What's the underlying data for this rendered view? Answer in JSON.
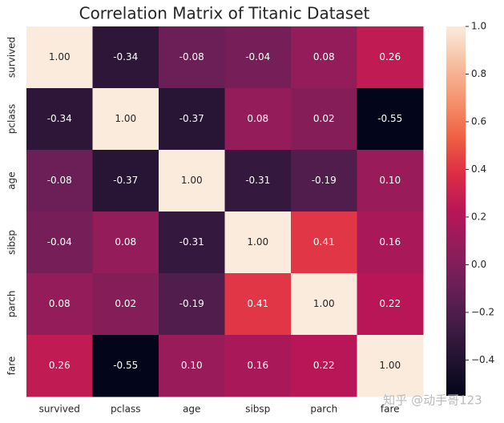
{
  "chart_data": {
    "type": "heatmap",
    "title": "Correlation Matrix of Titanic Dataset",
    "categories": [
      "survived",
      "pclass",
      "age",
      "sibsp",
      "parch",
      "fare"
    ],
    "values": [
      [
        1.0,
        -0.34,
        -0.08,
        -0.04,
        0.08,
        0.26
      ],
      [
        -0.34,
        1.0,
        -0.37,
        0.08,
        0.02,
        -0.55
      ],
      [
        -0.08,
        -0.37,
        1.0,
        -0.31,
        -0.19,
        0.1
      ],
      [
        -0.04,
        0.08,
        -0.31,
        1.0,
        0.41,
        0.16
      ],
      [
        0.08,
        0.02,
        -0.19,
        0.41,
        1.0,
        0.22
      ],
      [
        0.26,
        -0.55,
        0.1,
        0.16,
        0.22,
        1.0
      ]
    ],
    "value_labels": [
      [
        "1.00",
        "-0.34",
        "-0.08",
        "-0.04",
        "0.08",
        "0.26"
      ],
      [
        "-0.34",
        "1.00",
        "-0.37",
        "0.08",
        "0.02",
        "-0.55"
      ],
      [
        "-0.08",
        "-0.37",
        "1.00",
        "-0.31",
        "-0.19",
        "0.10"
      ],
      [
        "-0.04",
        "0.08",
        "-0.31",
        "1.00",
        "0.41",
        "0.16"
      ],
      [
        "0.08",
        "0.02",
        "-0.19",
        "0.41",
        "1.00",
        "0.22"
      ],
      [
        "0.26",
        "-0.55",
        "0.10",
        "0.16",
        "0.22",
        "1.00"
      ]
    ],
    "colormap": "rocket",
    "zlim": [
      -0.55,
      1.0
    ],
    "zticks": [
      {
        "value": 1,
        "label": "1.0"
      },
      0.8,
      0.6,
      0.4,
      0.2,
      {
        "value": 0,
        "label": "0.0"
      },
      {
        "value": -0.2,
        "label": "−0.2"
      },
      {
        "value": -0.4,
        "label": "−0.4"
      }
    ],
    "watermark": "知乎 @动手哥123"
  }
}
